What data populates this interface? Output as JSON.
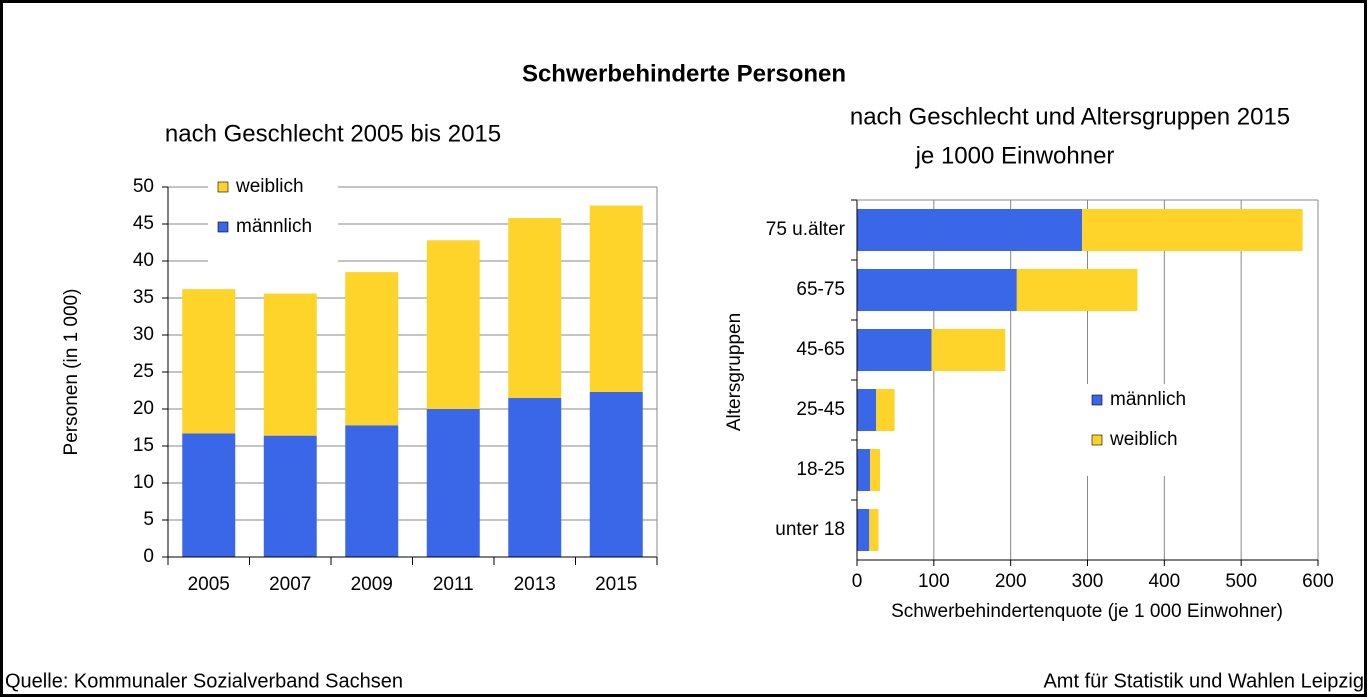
{
  "title": "Schwerbehinderte Personen",
  "source": "Quelle: Kommunaler Sozialverband Sachsen",
  "publisher": "Amt für Statistik und Wahlen Leipzig",
  "chart_data": [
    {
      "type": "bar",
      "stacked": true,
      "horizontal": false,
      "title": "nach Geschlecht 2005 bis 2015",
      "ylabel": "Personen (in 1 000)",
      "categories": [
        "2005",
        "2007",
        "2009",
        "2011",
        "2013",
        "2015"
      ],
      "series": [
        {
          "name": "männlich",
          "color": "#3a66e8",
          "values": [
            16.7,
            16.4,
            17.8,
            20.0,
            21.5,
            22.3
          ]
        },
        {
          "name": "weiblich",
          "color": "#ffd42a",
          "values": [
            19.5,
            19.2,
            20.7,
            22.8,
            24.3,
            25.2
          ]
        }
      ],
      "ylim": [
        0,
        50
      ],
      "yticks": [
        0,
        5,
        10,
        15,
        20,
        25,
        30,
        35,
        40,
        45,
        50
      ],
      "grid": true,
      "legend": "upper left"
    },
    {
      "type": "bar",
      "stacked": true,
      "horizontal": true,
      "title": "nach Geschlecht und Altersgruppen 2015",
      "subtitle": "je 1000 Einwohner",
      "ylabel": "Altersgruppen",
      "xlabel": "Schwerbehindertenquote (je 1 000 Einwohner)",
      "categories": [
        "75 u.älter",
        "65-75",
        "45-65",
        "25-45",
        "18-25",
        "unter 18"
      ],
      "series": [
        {
          "name": "männlich",
          "color": "#3a66e8",
          "values": [
            293,
            208,
            97,
            25,
            17,
            16
          ]
        },
        {
          "name": "weiblich",
          "color": "#ffd42a",
          "values": [
            287,
            157,
            96,
            24,
            13,
            12
          ]
        }
      ],
      "xlim": [
        0,
        600
      ],
      "xticks": [
        0,
        100,
        200,
        300,
        400,
        500,
        600
      ],
      "grid": true,
      "legend": "lower right"
    }
  ]
}
